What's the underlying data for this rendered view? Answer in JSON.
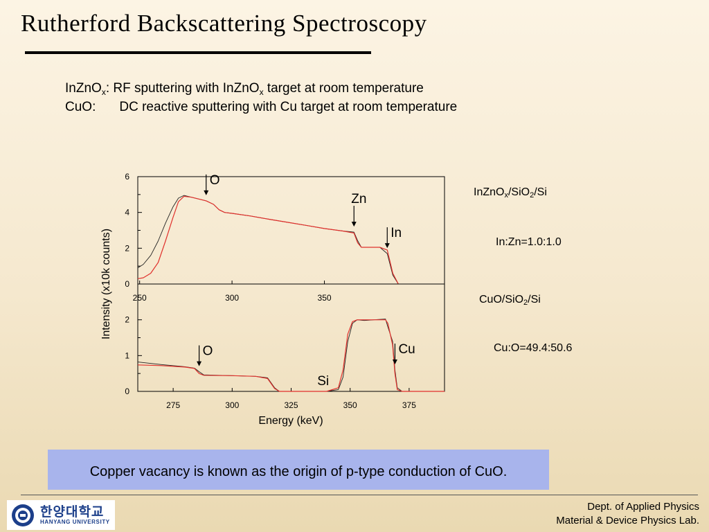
{
  "slide": {
    "title": "Rutherford Backscattering Spectroscopy",
    "line1": {
      "a": "InZnO",
      "sub": "x",
      "b": ": RF sputtering with InZnO",
      "sub2": "x",
      "c": " target at room temperature"
    },
    "line2": {
      "label": "CuO:",
      "text": "DC reactive sputtering with Cu target at room temperature"
    }
  },
  "annotations": {
    "top_sample": {
      "a": "InZnO",
      "sub": "x",
      "b": "/SiO",
      "sub2": "2",
      "c": "/Si"
    },
    "top_ratio": "In:Zn=1.0:1.0",
    "bottom_sample": {
      "a": "CuO/SiO",
      "sub": "2",
      "c": "/Si"
    },
    "bottom_ratio": "Cu:O=49.4:50.6"
  },
  "callout": "Copper vacancy is known as the origin of p-type conduction of CuO.",
  "footer": {
    "logo_kr": "한양대학교",
    "logo_en": "HANYANG UNIVERSITY",
    "dept": "Dept. of Applied Physics",
    "lab": "Material & Device Physics Lab."
  },
  "colors": {
    "measured": "#222222",
    "simulated": "#e0302c",
    "callout_bg": "#a8b4ec"
  },
  "chart_data": [
    {
      "type": "line",
      "xlabel": "",
      "ylabel": "Intensity (x10k counts)",
      "xlim": [
        249,
        415
      ],
      "ylim": [
        0,
        6
      ],
      "xticks": [
        250,
        300,
        350
      ],
      "yticks": [
        0,
        2,
        4,
        6
      ],
      "series": [
        {
          "role": "measured",
          "x": [
            249,
            252,
            256,
            260,
            264,
            268,
            271,
            274,
            278,
            282,
            286,
            290,
            293,
            296,
            300,
            310,
            320,
            330,
            340,
            350,
            360,
            366,
            368,
            370,
            372,
            376,
            380,
            384,
            387,
            390
          ],
          "y": [
            0.9,
            1.1,
            1.6,
            2.4,
            3.4,
            4.3,
            4.8,
            4.95,
            4.85,
            4.75,
            4.65,
            4.45,
            4.15,
            4.0,
            3.95,
            3.8,
            3.62,
            3.45,
            3.28,
            3.1,
            2.96,
            2.9,
            2.42,
            2.05,
            2.05,
            2.05,
            2.05,
            1.7,
            0.5,
            0.0
          ]
        },
        {
          "role": "simulated",
          "x": [
            249,
            252,
            256,
            260,
            264,
            268,
            271,
            274,
            278,
            282,
            286,
            290,
            293,
            296,
            300,
            310,
            320,
            330,
            340,
            350,
            360,
            366,
            368,
            370,
            372,
            376,
            380,
            384,
            387,
            390
          ],
          "y": [
            0.3,
            0.35,
            0.6,
            1.2,
            2.4,
            3.7,
            4.6,
            4.9,
            4.85,
            4.75,
            4.65,
            4.45,
            4.15,
            4.0,
            3.95,
            3.8,
            3.62,
            3.45,
            3.28,
            3.1,
            2.96,
            2.85,
            2.3,
            2.05,
            2.05,
            2.05,
            2.05,
            1.9,
            0.6,
            0.0
          ]
        }
      ],
      "annotations": [
        {
          "label": "O",
          "x": 286
        },
        {
          "label": "Zn",
          "x": 366
        },
        {
          "label": "In",
          "x": 384
        }
      ]
    },
    {
      "type": "line",
      "xlabel": "Energy (keV)",
      "ylabel": "Intensity (x10k counts)",
      "xlim": [
        260,
        390
      ],
      "ylim": [
        0,
        3
      ],
      "xticks": [
        275,
        300,
        325,
        350,
        375
      ],
      "yticks": [
        0,
        1,
        2
      ],
      "series": [
        {
          "role": "measured",
          "x": [
            260,
            270,
            280,
            284,
            286,
            288,
            300,
            310,
            315,
            318,
            320,
            340,
            345,
            347,
            349,
            351,
            353,
            356,
            360,
            365,
            366,
            368,
            369,
            370,
            372,
            390
          ],
          "y": [
            0.82,
            0.75,
            0.69,
            0.65,
            0.55,
            0.46,
            0.44,
            0.42,
            0.38,
            0.1,
            0.0,
            0.0,
            0.05,
            0.4,
            1.4,
            1.9,
            2.0,
            1.98,
            2.0,
            2.02,
            1.8,
            1.4,
            0.6,
            0.1,
            0.0,
            0.0
          ]
        },
        {
          "role": "simulated",
          "x": [
            260,
            270,
            280,
            284,
            286,
            288,
            300,
            310,
            315,
            318,
            320,
            340,
            345,
            347,
            349,
            351,
            353,
            356,
            360,
            365,
            366,
            368,
            369,
            370,
            372,
            390
          ],
          "y": [
            0.74,
            0.72,
            0.68,
            0.64,
            0.5,
            0.45,
            0.44,
            0.42,
            0.36,
            0.08,
            0.0,
            0.0,
            0.1,
            0.6,
            1.6,
            1.95,
            2.0,
            2.0,
            2.0,
            2.0,
            1.9,
            1.3,
            0.5,
            0.05,
            0.0,
            0.0
          ]
        }
      ],
      "annotations": [
        {
          "label": "O",
          "x": 286
        },
        {
          "label": "Si",
          "x": 318
        },
        {
          "label": "Cu",
          "x": 369
        }
      ]
    }
  ]
}
